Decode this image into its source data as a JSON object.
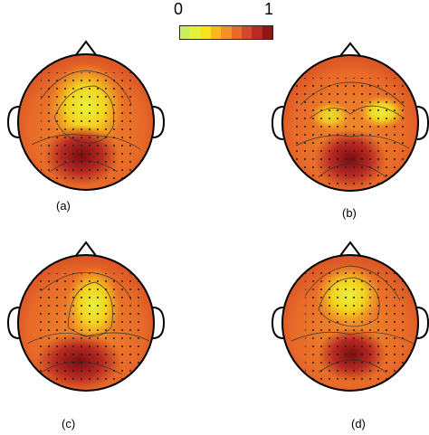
{
  "colorbar": {
    "min_label": "0",
    "max_label": "1",
    "stops": [
      "#c8f05a",
      "#e6f23a",
      "#f7e21c",
      "#f9b81c",
      "#f2902a",
      "#e66a2a",
      "#d14a2a",
      "#b82a22",
      "#8e1616"
    ]
  },
  "panels": [
    {
      "label": "(a)"
    },
    {
      "label": "(b)"
    },
    {
      "label": "(c)"
    },
    {
      "label": "(d)"
    }
  ]
}
